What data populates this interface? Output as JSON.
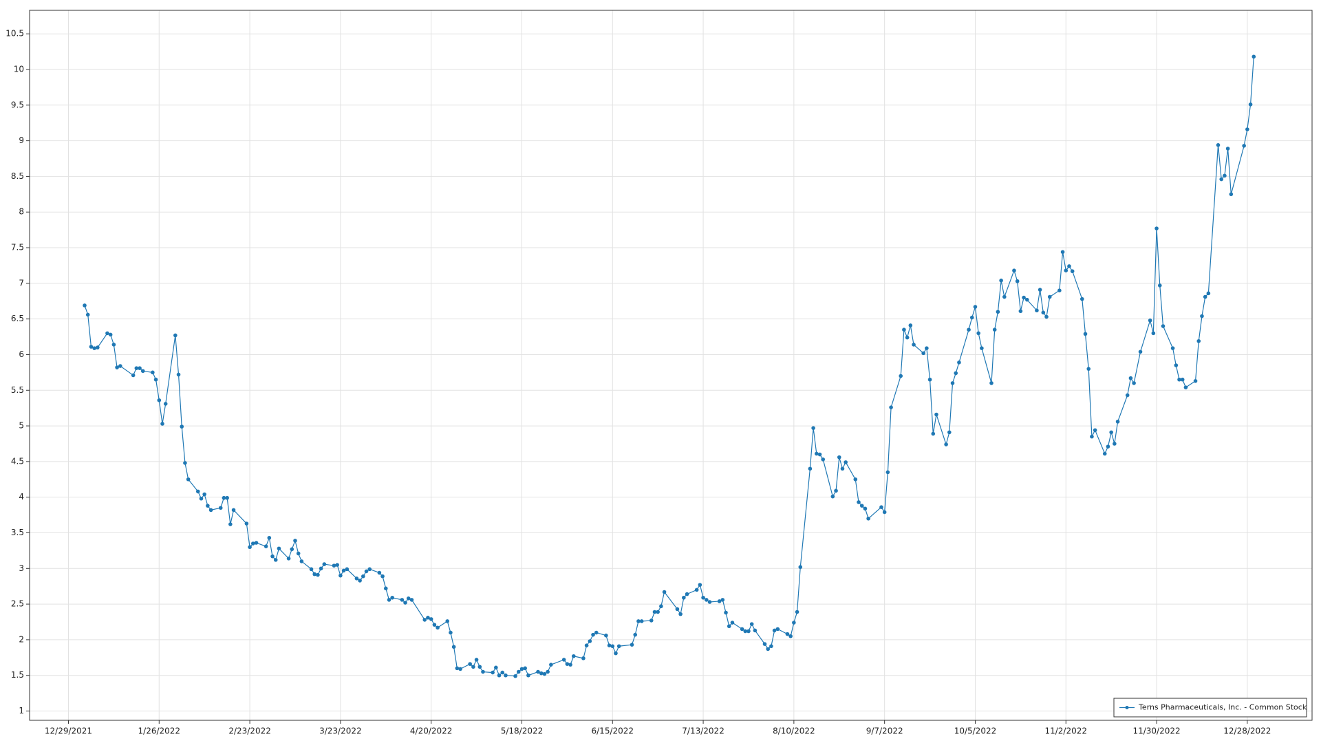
{
  "chart_data": {
    "type": "line",
    "xlim": [
      "12/17/2021",
      "1/17/2023"
    ],
    "xticks": [
      "12/29/2021",
      "1/26/2022",
      "2/23/2022",
      "3/23/2022",
      "4/20/2022",
      "5/18/2022",
      "6/15/2022",
      "7/13/2022",
      "8/10/2022",
      "9/7/2022",
      "10/5/2022",
      "11/2/2022",
      "11/30/2022",
      "12/28/2022"
    ],
    "ylim": [
      0.87,
      10.83
    ],
    "yticks": [
      1,
      1.5,
      2,
      2.5,
      3,
      3.5,
      4,
      4.5,
      5,
      5.5,
      6,
      6.5,
      7,
      7.5,
      8,
      8.5,
      9,
      9.5,
      10,
      10.5
    ],
    "grid": true,
    "legend": "lower right",
    "x": [
      "1/3/2022",
      "1/4/2022",
      "1/5/2022",
      "1/6/2022",
      "1/7/2022",
      "1/10/2022",
      "1/11/2022",
      "1/12/2022",
      "1/13/2022",
      "1/14/2022",
      "1/18/2022",
      "1/19/2022",
      "1/20/2022",
      "1/21/2022",
      "1/24/2022",
      "1/25/2022",
      "1/26/2022",
      "1/27/2022",
      "1/28/2022",
      "1/31/2022",
      "2/1/2022",
      "2/2/2022",
      "2/3/2022",
      "2/4/2022",
      "2/7/2022",
      "2/8/2022",
      "2/9/2022",
      "2/10/2022",
      "2/11/2022",
      "2/14/2022",
      "2/15/2022",
      "2/16/2022",
      "2/17/2022",
      "2/18/2022",
      "2/22/2022",
      "2/23/2022",
      "2/24/2022",
      "2/25/2022",
      "2/28/2022",
      "3/1/2022",
      "3/2/2022",
      "3/3/2022",
      "3/4/2022",
      "3/7/2022",
      "3/8/2022",
      "3/9/2022",
      "3/10/2022",
      "3/11/2022",
      "3/14/2022",
      "3/15/2022",
      "3/16/2022",
      "3/17/2022",
      "3/18/2022",
      "3/21/2022",
      "3/22/2022",
      "3/23/2022",
      "3/24/2022",
      "3/25/2022",
      "3/28/2022",
      "3/29/2022",
      "3/30/2022",
      "3/31/2022",
      "4/1/2022",
      "4/4/2022",
      "4/5/2022",
      "4/6/2022",
      "4/7/2022",
      "4/8/2022",
      "4/11/2022",
      "4/12/2022",
      "4/13/2022",
      "4/14/2022",
      "4/18/2022",
      "4/19/2022",
      "4/20/2022",
      "4/21/2022",
      "4/22/2022",
      "4/25/2022",
      "4/26/2022",
      "4/27/2022",
      "4/28/2022",
      "4/29/2022",
      "5/2/2022",
      "5/3/2022",
      "5/4/2022",
      "5/5/2022",
      "5/6/2022",
      "5/9/2022",
      "5/10/2022",
      "5/11/2022",
      "5/12/2022",
      "5/13/2022",
      "5/16/2022",
      "5/17/2022",
      "5/18/2022",
      "5/19/2022",
      "5/20/2022",
      "5/23/2022",
      "5/24/2022",
      "5/25/2022",
      "5/26/2022",
      "5/27/2022",
      "5/31/2022",
      "6/1/2022",
      "6/2/2022",
      "6/3/2022",
      "6/6/2022",
      "6/7/2022",
      "6/8/2022",
      "6/9/2022",
      "6/10/2022",
      "6/13/2022",
      "6/14/2022",
      "6/15/2022",
      "6/16/2022",
      "6/17/2022",
      "6/21/2022",
      "6/22/2022",
      "6/23/2022",
      "6/24/2022",
      "6/27/2022",
      "6/28/2022",
      "6/29/2022",
      "6/30/2022",
      "7/1/2022",
      "7/5/2022",
      "7/6/2022",
      "7/7/2022",
      "7/8/2022",
      "7/11/2022",
      "7/12/2022",
      "7/13/2022",
      "7/14/2022",
      "7/15/2022",
      "7/18/2022",
      "7/19/2022",
      "7/20/2022",
      "7/21/2022",
      "7/22/2022",
      "7/25/2022",
      "7/26/2022",
      "7/27/2022",
      "7/28/2022",
      "7/29/2022",
      "8/1/2022",
      "8/2/2022",
      "8/3/2022",
      "8/4/2022",
      "8/5/2022",
      "8/8/2022",
      "8/9/2022",
      "8/10/2022",
      "8/11/2022",
      "8/12/2022",
      "8/15/2022",
      "8/16/2022",
      "8/17/2022",
      "8/18/2022",
      "8/19/2022",
      "8/22/2022",
      "8/23/2022",
      "8/24/2022",
      "8/25/2022",
      "8/26/2022",
      "8/29/2022",
      "8/30/2022",
      "8/31/2022",
      "9/1/2022",
      "9/2/2022",
      "9/6/2022",
      "9/7/2022",
      "9/8/2022",
      "9/9/2022",
      "9/12/2022",
      "9/13/2022",
      "9/14/2022",
      "9/15/2022",
      "9/16/2022",
      "9/19/2022",
      "9/20/2022",
      "9/21/2022",
      "9/22/2022",
      "9/23/2022",
      "9/26/2022",
      "9/27/2022",
      "9/28/2022",
      "9/29/2022",
      "9/30/2022",
      "10/3/2022",
      "10/4/2022",
      "10/5/2022",
      "10/6/2022",
      "10/7/2022",
      "10/10/2022",
      "10/11/2022",
      "10/12/2022",
      "10/13/2022",
      "10/14/2022",
      "10/17/2022",
      "10/18/2022",
      "10/19/2022",
      "10/20/2022",
      "10/21/2022",
      "10/24/2022",
      "10/25/2022",
      "10/26/2022",
      "10/27/2022",
      "10/28/2022",
      "10/31/2022",
      "11/1/2022",
      "11/2/2022",
      "11/3/2022",
      "11/4/2022",
      "11/7/2022",
      "11/8/2022",
      "11/9/2022",
      "11/10/2022",
      "11/11/2022",
      "11/14/2022",
      "11/15/2022",
      "11/16/2022",
      "11/17/2022",
      "11/18/2022",
      "11/21/2022",
      "11/22/2022",
      "11/23/2022",
      "11/25/2022",
      "11/28/2022",
      "11/29/2022",
      "11/30/2022",
      "12/1/2022",
      "12/2/2022",
      "12/5/2022",
      "12/6/2022",
      "12/7/2022",
      "12/8/2022",
      "12/9/2022",
      "12/12/2022",
      "12/13/2022",
      "12/14/2022",
      "12/15/2022",
      "12/16/2022",
      "12/19/2022",
      "12/20/2022",
      "12/21/2022",
      "12/22/2022",
      "12/23/2022",
      "12/27/2022",
      "12/28/2022",
      "12/29/2022",
      "12/30/2022"
    ],
    "series": [
      {
        "name": "Terns Pharmaceuticals, Inc. - Common Stock",
        "color": "#1f78b4",
        "values": [
          6.69,
          6.56,
          6.11,
          6.09,
          6.1,
          6.3,
          6.28,
          6.14,
          5.82,
          5.84,
          5.71,
          5.81,
          5.81,
          5.77,
          5.75,
          5.65,
          5.36,
          5.03,
          5.31,
          6.27,
          5.72,
          4.99,
          4.48,
          4.25,
          4.08,
          3.98,
          4.04,
          3.88,
          3.82,
          3.85,
          3.99,
          3.99,
          3.62,
          3.82,
          3.63,
          3.3,
          3.35,
          3.36,
          3.31,
          3.43,
          3.17,
          3.12,
          3.28,
          3.14,
          3.27,
          3.39,
          3.21,
          3.1,
          2.99,
          2.92,
          2.91,
          3.0,
          3.06,
          3.04,
          3.05,
          2.9,
          2.97,
          2.99,
          2.86,
          2.83,
          2.89,
          2.96,
          2.99,
          2.94,
          2.89,
          2.72,
          2.56,
          2.59,
          2.56,
          2.52,
          2.58,
          2.56,
          2.28,
          2.31,
          2.29,
          2.21,
          2.17,
          2.26,
          2.1,
          1.9,
          1.6,
          1.59,
          1.66,
          1.62,
          1.72,
          1.62,
          1.55,
          1.54,
          1.61,
          1.5,
          1.54,
          1.5,
          1.49,
          1.55,
          1.59,
          1.6,
          1.5,
          1.55,
          1.53,
          1.52,
          1.55,
          1.65,
          1.72,
          1.66,
          1.65,
          1.77,
          1.74,
          1.92,
          1.98,
          2.07,
          2.1,
          2.06,
          1.92,
          1.91,
          1.81,
          1.91,
          1.93,
          2.07,
          2.26,
          2.26,
          2.27,
          2.39,
          2.39,
          2.47,
          2.67,
          2.43,
          2.36,
          2.59,
          2.64,
          2.7,
          2.77,
          2.59,
          2.56,
          2.53,
          2.54,
          2.56,
          2.38,
          2.19,
          2.24,
          2.15,
          2.12,
          2.12,
          2.22,
          2.13,
          1.94,
          1.87,
          1.91,
          2.13,
          2.15,
          2.08,
          2.05,
          2.24,
          2.39,
          3.02,
          4.4,
          4.97,
          4.61,
          4.6,
          4.53,
          4.01,
          4.09,
          4.56,
          4.4,
          4.49,
          4.25,
          3.93,
          3.88,
          3.84,
          3.7,
          3.86,
          3.79,
          4.35,
          5.26,
          5.7,
          6.35,
          6.24,
          6.41,
          6.14,
          6.02,
          6.09,
          5.65,
          4.89,
          5.16,
          4.74,
          4.91,
          5.6,
          5.74,
          5.89,
          6.35,
          6.52,
          6.67,
          6.3,
          6.09,
          5.6,
          6.35,
          6.6,
          7.04,
          6.81,
          7.18,
          7.03,
          6.61,
          6.8,
          6.77,
          6.62,
          6.91,
          6.59,
          6.53,
          6.81,
          6.9,
          7.44,
          7.18,
          7.24,
          7.17,
          6.78,
          6.29,
          5.8,
          4.85,
          4.94,
          4.61,
          4.71,
          4.91,
          4.75,
          5.06,
          5.43,
          5.67,
          5.6,
          6.04,
          6.48,
          6.3,
          7.77,
          6.97,
          6.4,
          6.09,
          5.85,
          5.65,
          5.65,
          5.54,
          5.63,
          6.19,
          6.54,
          6.81,
          6.86,
          8.94,
          8.46,
          8.51,
          8.89,
          8.25,
          8.93,
          9.16,
          9.51,
          10.18
        ]
      }
    ]
  }
}
